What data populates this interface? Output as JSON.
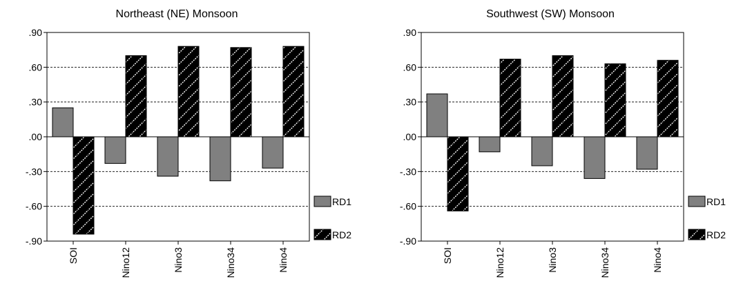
{
  "chart_data": [
    {
      "type": "bar",
      "title": "Northeast (NE) Monsoon",
      "categories": [
        "SOI",
        "Nino12",
        "Nino3",
        "Nino34",
        "Nino4"
      ],
      "series": [
        {
          "name": "RD1",
          "values": [
            0.25,
            -0.23,
            -0.34,
            -0.38,
            -0.27
          ],
          "color": "#808080"
        },
        {
          "name": "RD2",
          "values": [
            -0.84,
            0.7,
            0.78,
            0.77,
            0.78
          ],
          "color": "#000000",
          "pattern": "diagonal-hatch"
        }
      ],
      "ylim": [
        -0.9,
        0.9
      ],
      "yticks": [
        0.9,
        0.6,
        0.3,
        0.0,
        -0.3,
        -0.6,
        -0.9
      ],
      "ytick_labels": [
        ".90",
        ".60",
        ".30",
        ".00",
        "-.30",
        "-.60",
        "-.90"
      ],
      "grid": "horizontal dashed",
      "legend_position": "right"
    },
    {
      "type": "bar",
      "title": "Southwest (SW) Monsoon",
      "categories": [
        "SOI",
        "Nino12",
        "Nino3",
        "Nino34",
        "Nino4"
      ],
      "series": [
        {
          "name": "RD1",
          "values": [
            0.37,
            -0.13,
            -0.25,
            -0.36,
            -0.28
          ],
          "color": "#808080"
        },
        {
          "name": "RD2",
          "values": [
            -0.64,
            0.67,
            0.7,
            0.63,
            0.66
          ],
          "color": "#000000",
          "pattern": "diagonal-hatch"
        }
      ],
      "ylim": [
        -0.9,
        0.9
      ],
      "yticks": [
        0.9,
        0.6,
        0.3,
        0.0,
        -0.3,
        -0.6,
        -0.9
      ],
      "ytick_labels": [
        ".90",
        ".60",
        ".30",
        ".00",
        "-.30",
        "-.60",
        "-.90"
      ],
      "grid": "horizontal dashed",
      "legend_position": "right"
    }
  ]
}
